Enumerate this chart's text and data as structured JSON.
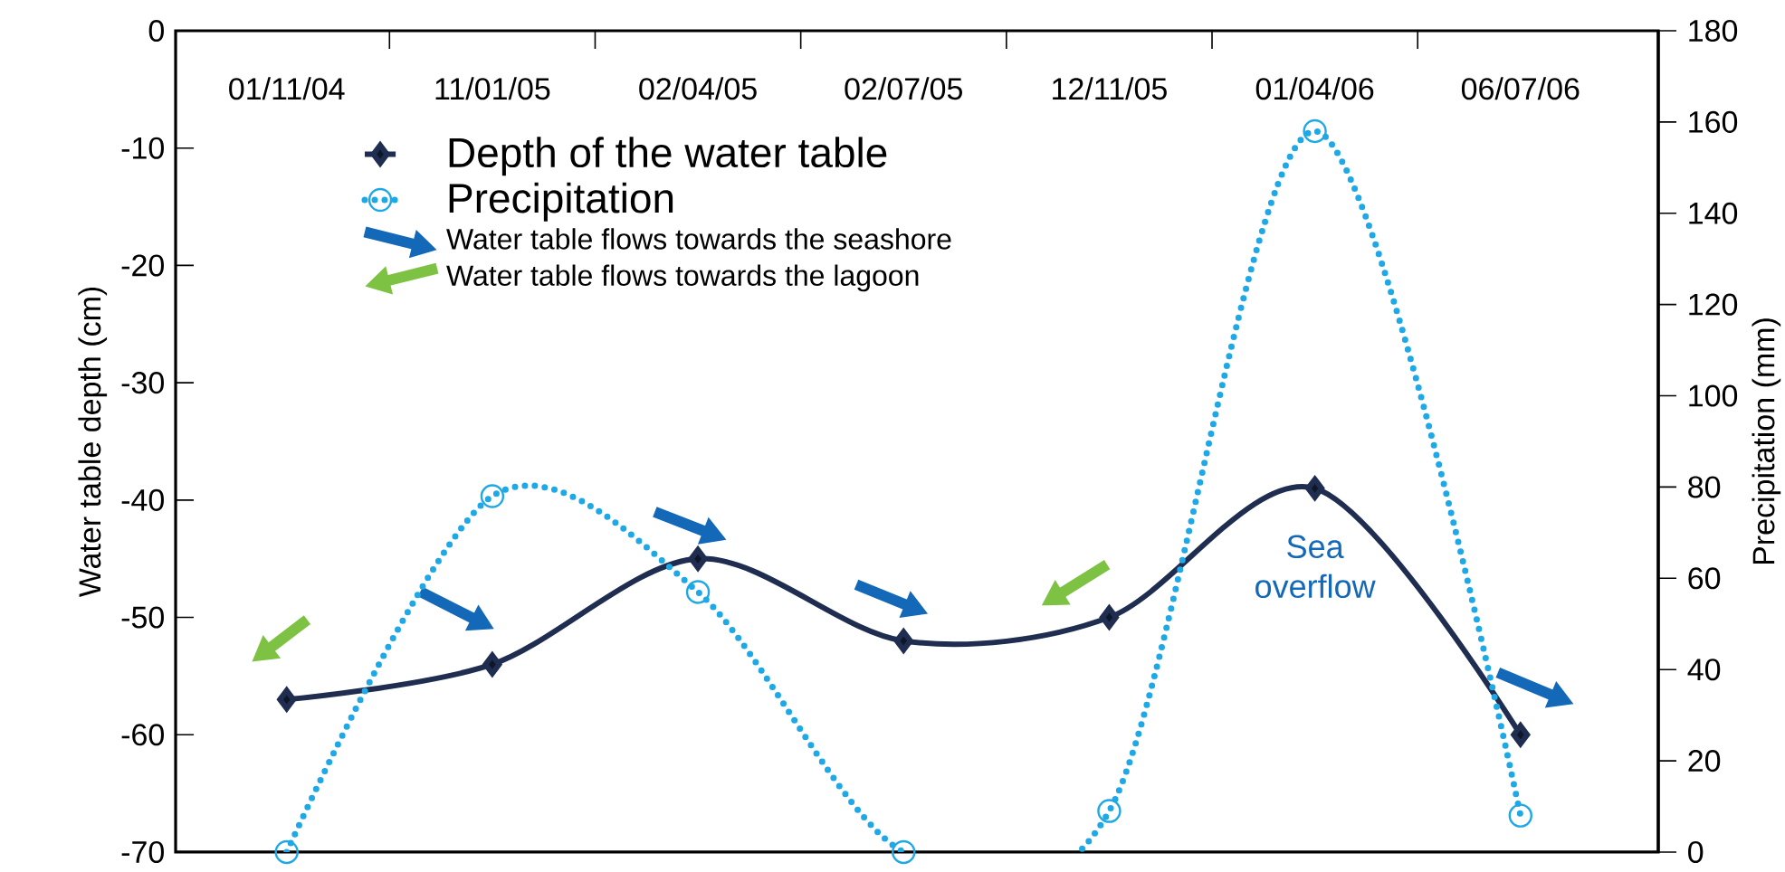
{
  "chart_data": {
    "type": "line",
    "xlabel": null,
    "ylabel": "Water table depth (cm)",
    "y2label": "Precipitation (mm)",
    "categories": [
      "01/11/04",
      "11/01/05",
      "02/04/05",
      "02/07/05",
      "12/11/05",
      "01/04/06",
      "06/07/06"
    ],
    "series": [
      {
        "name": "Depth of the water table",
        "color": "#1f2d50",
        "values": [
          -57,
          -54,
          -45,
          -52,
          -50,
          -39,
          -60
        ],
        "marker": "diamond",
        "line_style": "solid"
      },
      {
        "name": "Precipitation",
        "color": "#1ea8e6",
        "values": [
          0,
          78,
          57,
          0,
          9,
          158,
          8
        ],
        "axis": "y2",
        "marker": "circle",
        "line_style": "dotted"
      }
    ],
    "ylim": [
      -70,
      0
    ],
    "yticks": [
      -70,
      -60,
      -50,
      -40,
      -30,
      -20,
      -10,
      0
    ],
    "y2lim": [
      0,
      180
    ],
    "y2ticks": [
      0,
      20,
      40,
      60,
      80,
      100,
      120,
      140,
      160,
      180
    ],
    "legend": "top left",
    "grid": false,
    "annotations": [
      "Water table flows towards the seashore",
      "Water table flows towards the lagoon",
      "Sea overflow"
    ]
  }
}
